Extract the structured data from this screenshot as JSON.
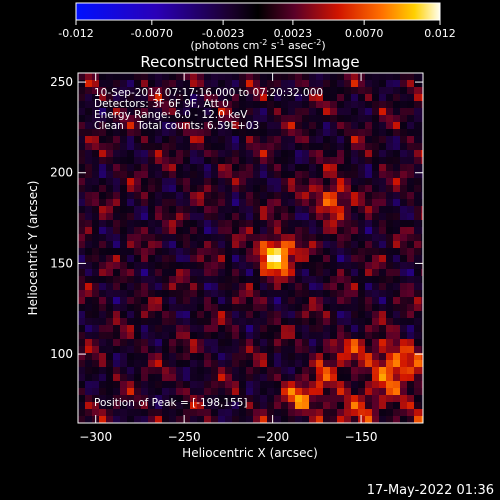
{
  "colorbar": {
    "ticks": [
      "-0.012",
      "-0.0070",
      "-0.0023",
      "0.0023",
      "0.0070",
      "0.012"
    ],
    "tick_values": [
      -0.012,
      -0.007,
      -0.0023,
      0.0023,
      0.007,
      0.012
    ],
    "range": [
      -0.012,
      0.012
    ],
    "unit_label_main": "(photons cm",
    "unit_label_exp1": "-2",
    "unit_label_mid": " s",
    "unit_label_exp2": "-1",
    "unit_label_end": " asec",
    "unit_label_exp3": "-2",
    "unit_label_close": ")"
  },
  "chart_data": {
    "type": "heatmap",
    "title": "Reconstructed RHESSI Image",
    "xlabel": "Heliocentric X (arcsec)",
    "ylabel": "Heliocentric Y (arcsec)",
    "xlim": [
      -310,
      -115
    ],
    "ylim": [
      62,
      255
    ],
    "x_ticks": [
      -300,
      -250,
      -200,
      -150
    ],
    "y_ticks": [
      100,
      150,
      200,
      250
    ],
    "x_tick_labels": [
      "−300",
      "−250",
      "−200",
      "−150"
    ],
    "y_tick_labels": [
      "100",
      "150",
      "200",
      "250"
    ],
    "colormap": "RHESSI (blue-black-red-yellow-white)",
    "annotations": [
      "10-Sep-2014 07:17:16.000 to 07:20:32.000",
      "Detectors: 3F 6F 9F, Att 0",
      "Energy Range: 6.0 - 12.0 keV",
      "Clean    Total counts: 6.59E+03"
    ],
    "peak_label": "Position of Peak = [-198,155]",
    "peak": {
      "x": -198,
      "y": 155
    },
    "sources": [
      {
        "x": -198,
        "y": 155,
        "intensity": 0.012
      },
      {
        "x": -166,
        "y": 186,
        "intensity": 0.0075
      },
      {
        "x": -183,
        "y": 76,
        "intensity": 0.006
      },
      {
        "x": -133,
        "y": 95,
        "intensity": 0.005
      }
    ]
  },
  "footer": {
    "date": "17-May-2022 01:36"
  }
}
